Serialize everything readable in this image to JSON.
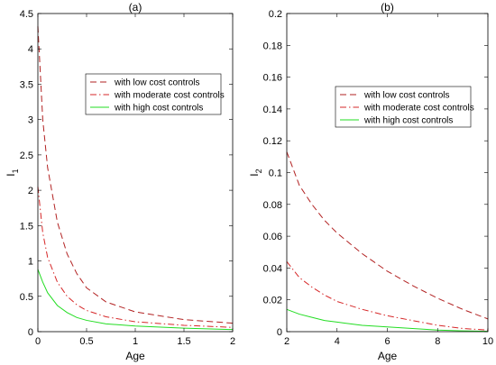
{
  "chart_data": [
    {
      "type": "line",
      "title": "(a)",
      "xlabel": "Age",
      "ylabel": "I",
      "ylabel_sub": "1",
      "xlim": [
        0,
        2
      ],
      "ylim": [
        0,
        4.5
      ],
      "xticks": [
        0,
        0.5,
        1,
        1.5,
        2
      ],
      "xtick_labels": [
        "0",
        "0.5",
        "1",
        "1.5",
        "2"
      ],
      "yticks": [
        0,
        0.5,
        1,
        1.5,
        2,
        2.5,
        3,
        3.5,
        4,
        4.5
      ],
      "ytick_labels": [
        "0",
        "0.5",
        "1",
        "1.5",
        "2",
        "2.5",
        "3",
        "3.5",
        "4",
        "4.5"
      ],
      "grid": false,
      "legend_position": "top-right",
      "x": [
        0,
        0.05,
        0.1,
        0.2,
        0.3,
        0.4,
        0.5,
        0.7,
        1.0,
        1.5,
        2.0
      ],
      "series": [
        {
          "name": "with low cost controls",
          "color": "#b22222",
          "dash": "dashed",
          "values": [
            4.32,
            3.0,
            2.32,
            1.55,
            1.1,
            0.82,
            0.62,
            0.42,
            0.28,
            0.17,
            0.12
          ]
        },
        {
          "name": "with moderate cost controls",
          "color": "#d62728",
          "dash": "dashdot",
          "values": [
            2.05,
            1.4,
            1.05,
            0.7,
            0.5,
            0.38,
            0.3,
            0.21,
            0.14,
            0.09,
            0.06
          ]
        },
        {
          "name": "with high cost controls",
          "color": "#22dd22",
          "dash": "solid",
          "values": [
            0.88,
            0.7,
            0.55,
            0.37,
            0.27,
            0.2,
            0.16,
            0.11,
            0.08,
            0.05,
            0.03
          ]
        }
      ]
    },
    {
      "type": "line",
      "title": "(b)",
      "xlabel": "Age",
      "ylabel": "I",
      "ylabel_sub": "2",
      "xlim": [
        2,
        10
      ],
      "ylim": [
        0,
        0.2
      ],
      "xticks": [
        2,
        4,
        6,
        8,
        10
      ],
      "xtick_labels": [
        "2",
        "4",
        "6",
        "8",
        "10"
      ],
      "yticks": [
        0,
        0.02,
        0.04,
        0.06,
        0.08,
        0.1,
        0.12,
        0.14,
        0.16,
        0.18,
        0.2
      ],
      "ytick_labels": [
        "0",
        "0.02",
        "0.04",
        "0.06",
        "0.08",
        "0.1",
        "0.12",
        "0.14",
        "0.16",
        "0.18",
        "0.2"
      ],
      "grid": false,
      "legend_position": "top-right",
      "x": [
        2,
        2.5,
        3,
        3.5,
        4,
        5,
        6,
        7,
        8,
        9,
        10
      ],
      "series": [
        {
          "name": "with low cost controls",
          "color": "#b22222",
          "dash": "dashed",
          "values": [
            0.113,
            0.092,
            0.08,
            0.07,
            0.062,
            0.049,
            0.038,
            0.029,
            0.021,
            0.014,
            0.008
          ]
        },
        {
          "name": "with moderate cost controls",
          "color": "#d62728",
          "dash": "dashdot",
          "values": [
            0.044,
            0.034,
            0.028,
            0.023,
            0.019,
            0.014,
            0.01,
            0.007,
            0.004,
            0.002,
            0.001
          ]
        },
        {
          "name": "with high cost controls",
          "color": "#22dd22",
          "dash": "solid",
          "values": [
            0.014,
            0.011,
            0.009,
            0.007,
            0.006,
            0.004,
            0.003,
            0.002,
            0.001,
            0.0005,
            0.0002
          ]
        }
      ]
    }
  ]
}
